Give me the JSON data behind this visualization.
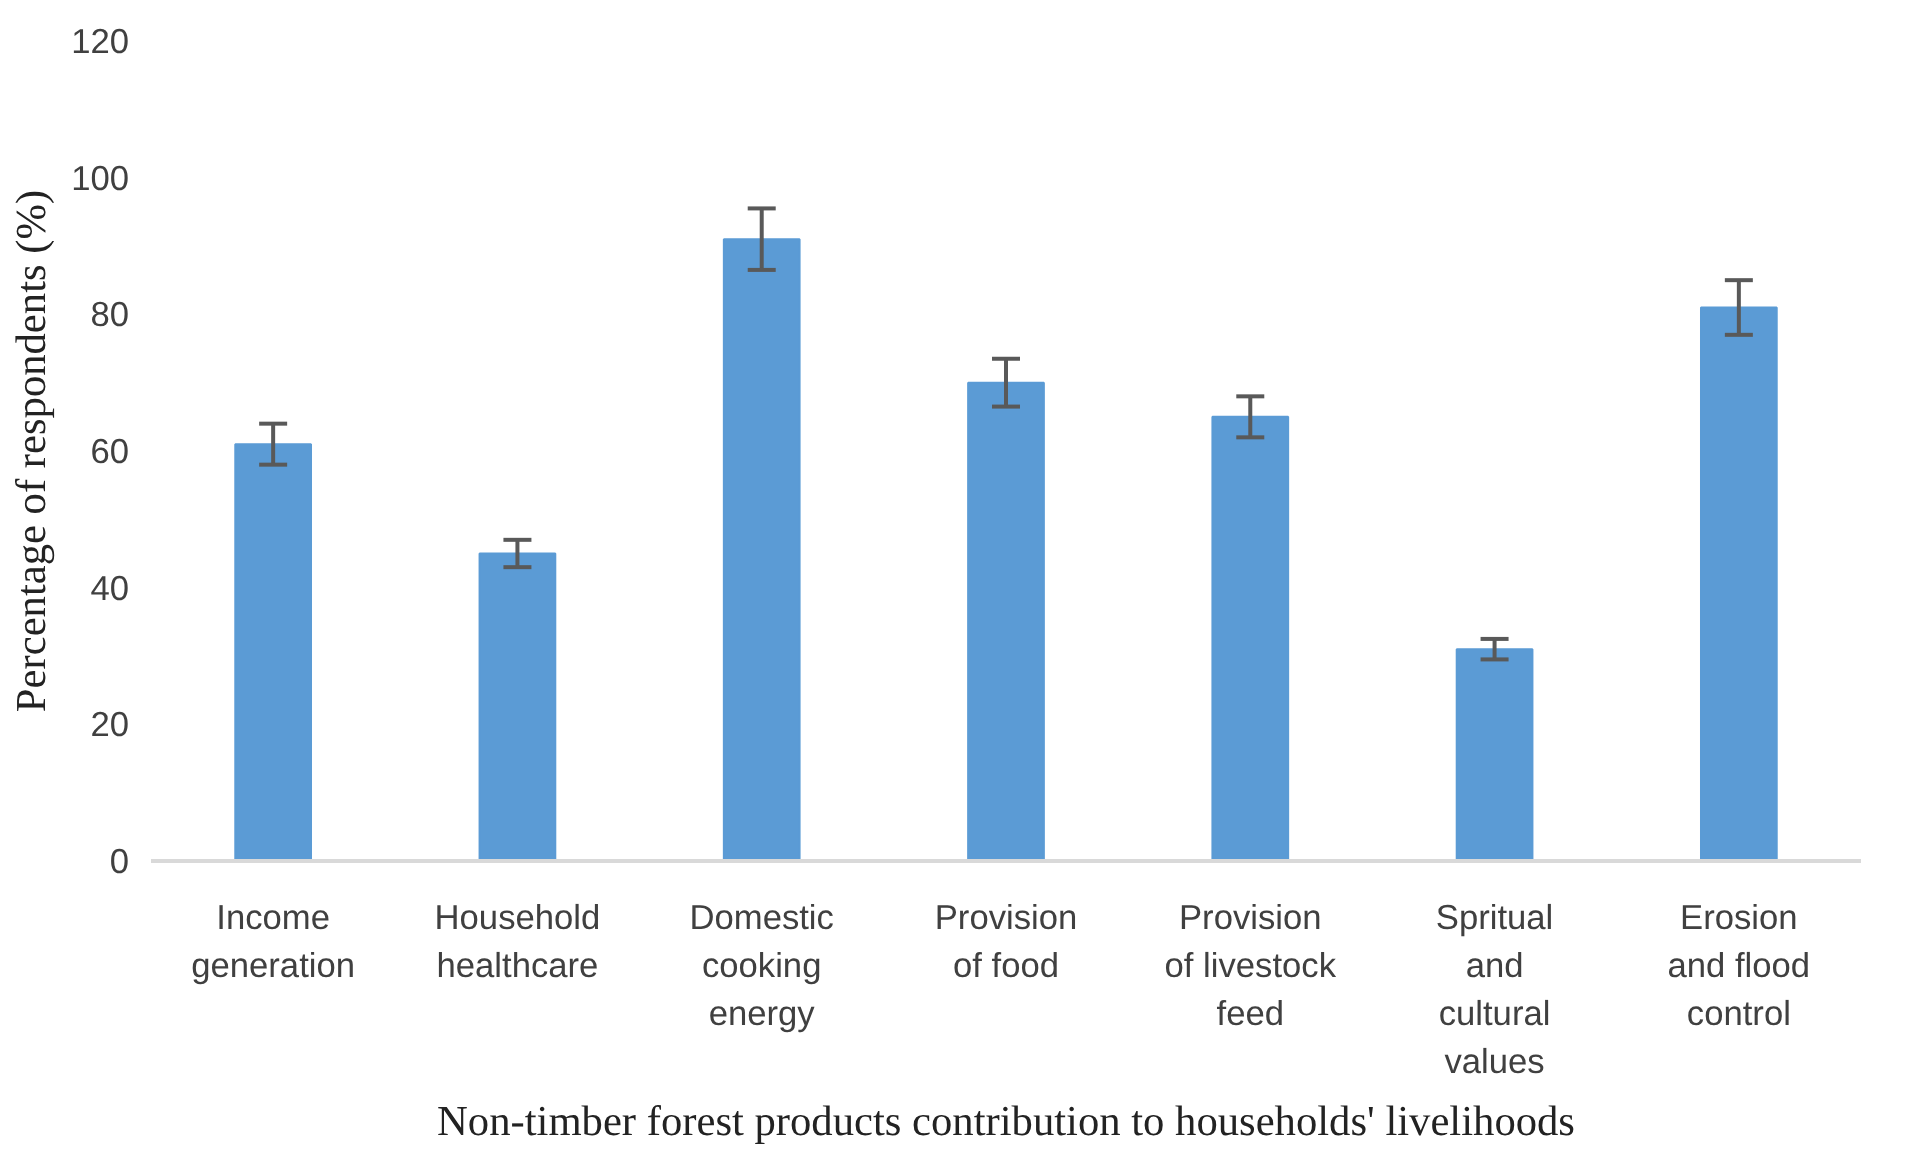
{
  "chart_data": {
    "type": "bar",
    "xlabel": "Non-timber forest products contribution to households' livelihoods",
    "ylabel": "Percentage of respondents (%)",
    "categories": [
      "Income\ngeneration",
      "Household\nhealthcare",
      "Domestic\ncooking\nenergy",
      "Provision\nof food",
      "Provision\nof livestock\nfeed",
      "Spritual\nand\ncultural\nvalues",
      "Erosion\nand flood\ncontrol"
    ],
    "values": [
      61,
      45,
      91,
      70,
      65,
      31,
      81
    ],
    "errors": [
      3,
      2,
      4.5,
      3.5,
      3,
      1.5,
      4
    ],
    "color": "#5b9bd5",
    "ylim": [
      0,
      120
    ],
    "yticks": [
      0,
      20,
      40,
      60,
      80,
      100,
      120
    ],
    "grid": false
  }
}
